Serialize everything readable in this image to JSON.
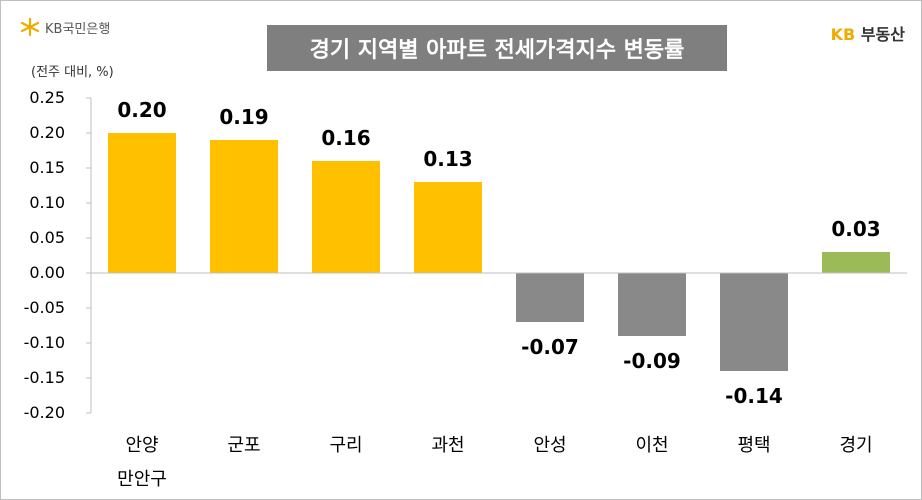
{
  "header": {
    "brand_left": "KB국민은행",
    "brand_right_kb": "KB",
    "brand_right_text": "부동산",
    "unit": "(전주 대비, %)"
  },
  "chart_data": {
    "type": "bar",
    "title": "경기 지역별 아파트 전세가격지수 변동률",
    "categories": [
      [
        "안양",
        "만안구"
      ],
      [
        "군포"
      ],
      [
        "구리"
      ],
      [
        "과천"
      ],
      [
        "안성"
      ],
      [
        "이천"
      ],
      [
        "평택"
      ],
      [
        "경기"
      ]
    ],
    "values": [
      0.2,
      0.19,
      0.16,
      0.13,
      -0.07,
      -0.09,
      -0.14,
      0.03
    ],
    "value_labels": [
      "0.20",
      "0.19",
      "0.16",
      "0.13",
      "-0.07",
      "-0.09",
      "-0.14",
      "0.03"
    ],
    "ylim": [
      -0.2,
      0.25
    ],
    "yticks": [
      "0.25",
      "0.20",
      "0.15",
      "0.10",
      "0.05",
      "0.00",
      "-0.05",
      "-0.10",
      "-0.15",
      "-0.20"
    ],
    "xlabel": "",
    "ylabel": "",
    "grid": false,
    "colors": {
      "positive": "#ffc000",
      "negative": "#898989",
      "total": "#9bbb59",
      "axis": "#bfbfbf"
    }
  }
}
